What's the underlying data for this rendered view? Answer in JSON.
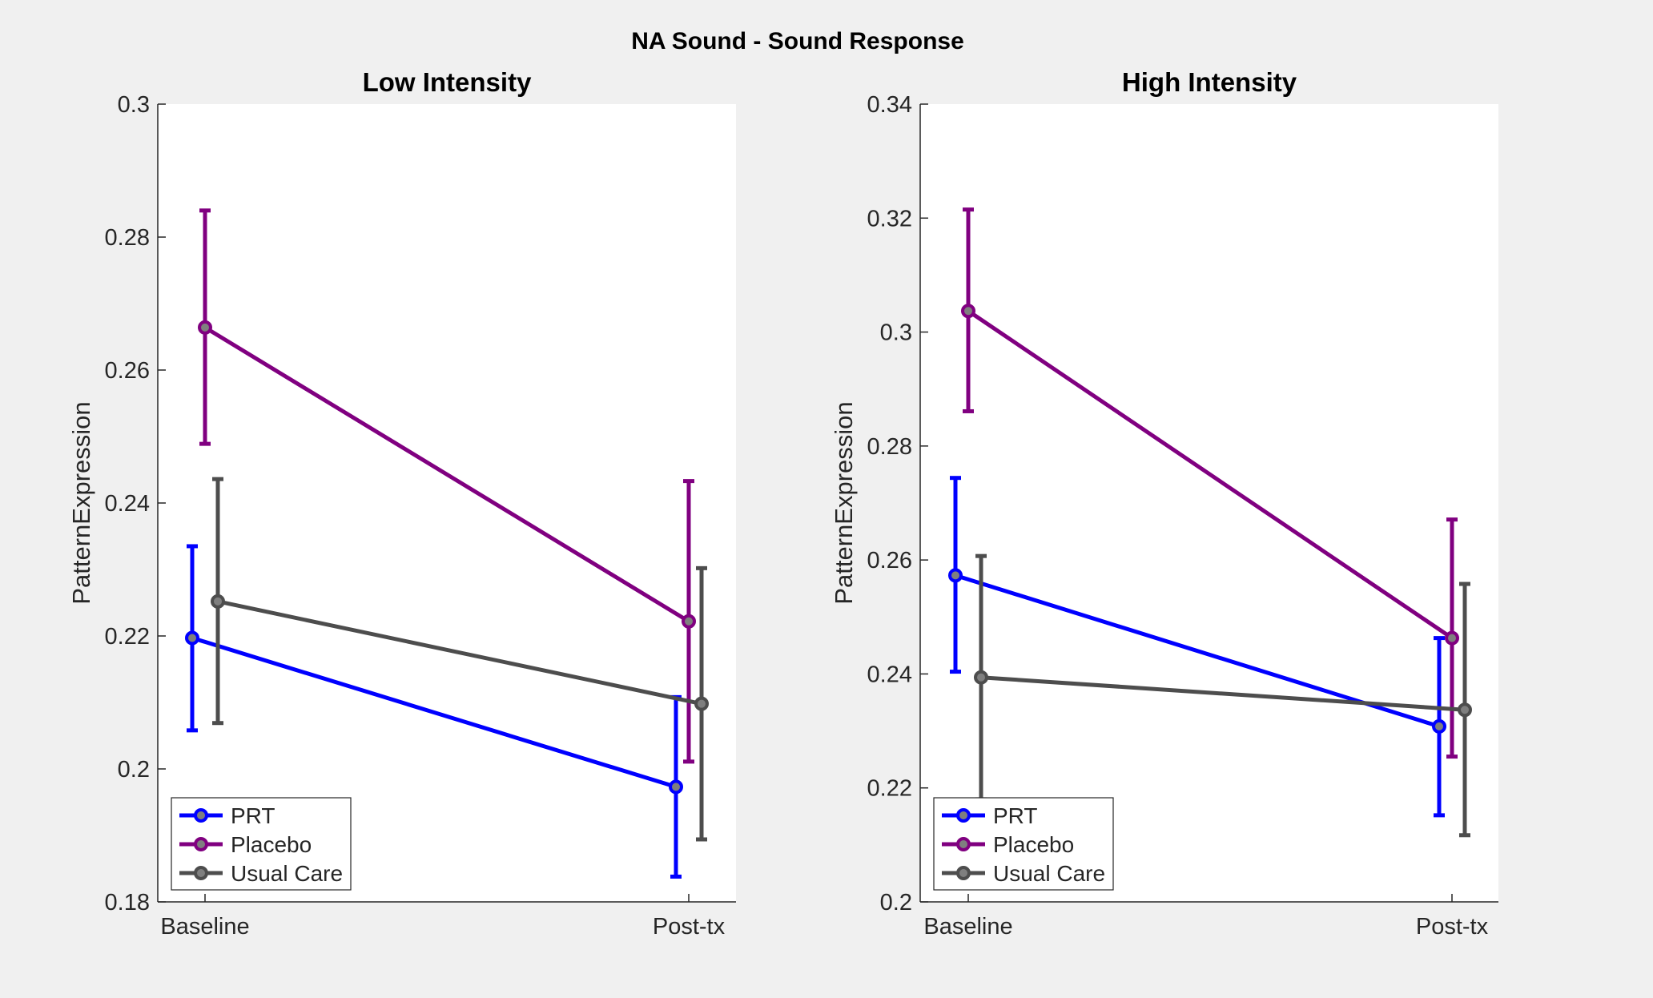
{
  "figure": {
    "suptitle": "NA Sound - Sound Response",
    "colors": {
      "background": "#f0f0f0",
      "axes": "#ffffff",
      "axis_line": "#262626"
    }
  },
  "chart_data": [
    {
      "type": "line",
      "title": "Low Intensity",
      "xlabel": "",
      "ylabel": "PatternExpression",
      "categories": [
        "Baseline",
        "Post-tx"
      ],
      "ylim": [
        0.18,
        0.3
      ],
      "yticks": [
        0.18,
        0.2,
        0.22,
        0.24,
        0.26,
        0.28,
        0.3
      ],
      "ytick_labels": [
        "0.18",
        "0.2",
        "0.22",
        "0.24",
        "0.26",
        "0.28",
        "0.3"
      ],
      "grid": false,
      "legend": {
        "position": "bottom-left",
        "entries": [
          "PRT",
          "Placebo",
          "Usual Care"
        ]
      },
      "series": [
        {
          "name": "PRT",
          "color": "#0000ff",
          "values": [
            0.2197,
            0.1973
          ],
          "err_low": [
            0.2058,
            0.1838
          ],
          "err_high": [
            0.2335,
            0.2108
          ]
        },
        {
          "name": "Placebo",
          "color": "#800080",
          "values": [
            0.2664,
            0.2222
          ],
          "err_low": [
            0.2489,
            0.2011
          ],
          "err_high": [
            0.284,
            0.2433
          ]
        },
        {
          "name": "Usual Care",
          "color": "#4d4d4d",
          "values": [
            0.2252,
            0.2098
          ],
          "err_low": [
            0.2069,
            0.1894
          ],
          "err_high": [
            0.2436,
            0.2302
          ]
        }
      ]
    },
    {
      "type": "line",
      "title": "High Intensity",
      "xlabel": "",
      "ylabel": "PatternExpression",
      "categories": [
        "Baseline",
        "Post-tx"
      ],
      "ylim": [
        0.2,
        0.34
      ],
      "yticks": [
        0.2,
        0.22,
        0.24,
        0.26,
        0.28,
        0.3,
        0.32,
        0.34
      ],
      "ytick_labels": [
        "0.2",
        "0.22",
        "0.24",
        "0.26",
        "0.28",
        "0.3",
        "0.32",
        "0.34"
      ],
      "grid": false,
      "legend": {
        "position": "bottom-left",
        "entries": [
          "PRT",
          "Placebo",
          "Usual Care"
        ]
      },
      "series": [
        {
          "name": "PRT",
          "color": "#0000ff",
          "values": [
            0.2573,
            0.2308
          ],
          "err_low": [
            0.2404,
            0.2152
          ],
          "err_high": [
            0.2744,
            0.2463
          ]
        },
        {
          "name": "Placebo",
          "color": "#800080",
          "values": [
            0.3037,
            0.2463
          ],
          "err_low": [
            0.2861,
            0.2255
          ],
          "err_high": [
            0.3215,
            0.2671
          ]
        },
        {
          "name": "Usual Care",
          "color": "#4d4d4d",
          "values": [
            0.2394,
            0.2337
          ],
          "err_low": [
            0.218,
            0.2117
          ],
          "err_high": [
            0.2607,
            0.2558
          ]
        }
      ]
    }
  ]
}
